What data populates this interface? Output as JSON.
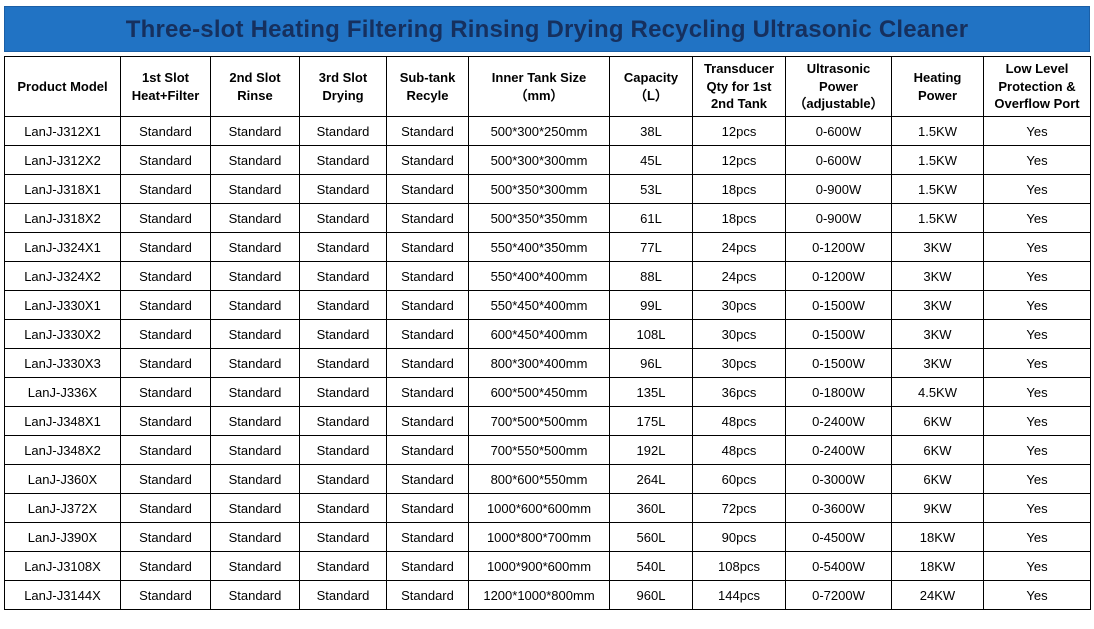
{
  "title": "Three-slot Heating Filtering Rinsing Drying Recycling Ultrasonic Cleaner",
  "colors": {
    "banner_bg": "#2173c4",
    "banner_text": "#16305e",
    "table_border": "#000000"
  },
  "table": {
    "header_keys": [
      "product-model",
      "slot1-heat-filter",
      "slot2-rinse",
      "slot3-drying",
      "subtank-recycle",
      "inner-tank-size",
      "capacity",
      "transducer-qty",
      "ultrasonic-power",
      "heating-power",
      "low-level-protection"
    ],
    "headers": [
      "Product Model",
      "1st Slot\nHeat+Filter",
      "2nd Slot\nRinse",
      "3rd Slot\nDrying",
      "Sub-tank\nRecyle",
      "Inner Tank Size\n（mm）",
      "Capacity\n（L）",
      "Transducer\nQty for 1st\n2nd Tank",
      "Ultrasonic\nPower\n（adjustable）",
      "Heating\nPower",
      "Low Level\nProtection &\nOverflow Port"
    ],
    "rows": [
      [
        "LanJ-J312X1",
        "Standard",
        "Standard",
        "Standard",
        "Standard",
        "500*300*250mm",
        "38L",
        "12pcs",
        "0-600W",
        "1.5KW",
        "Yes"
      ],
      [
        "LanJ-J312X2",
        "Standard",
        "Standard",
        "Standard",
        "Standard",
        "500*300*300mm",
        "45L",
        "12pcs",
        "0-600W",
        "1.5KW",
        "Yes"
      ],
      [
        "LanJ-J318X1",
        "Standard",
        "Standard",
        "Standard",
        "Standard",
        "500*350*300mm",
        "53L",
        "18pcs",
        "0-900W",
        "1.5KW",
        "Yes"
      ],
      [
        "LanJ-J318X2",
        "Standard",
        "Standard",
        "Standard",
        "Standard",
        "500*350*350mm",
        "61L",
        "18pcs",
        "0-900W",
        "1.5KW",
        "Yes"
      ],
      [
        "LanJ-J324X1",
        "Standard",
        "Standard",
        "Standard",
        "Standard",
        "550*400*350mm",
        "77L",
        "24pcs",
        "0-1200W",
        "3KW",
        "Yes"
      ],
      [
        "LanJ-J324X2",
        "Standard",
        "Standard",
        "Standard",
        "Standard",
        "550*400*400mm",
        "88L",
        "24pcs",
        "0-1200W",
        "3KW",
        "Yes"
      ],
      [
        "LanJ-J330X1",
        "Standard",
        "Standard",
        "Standard",
        "Standard",
        "550*450*400mm",
        "99L",
        "30pcs",
        "0-1500W",
        "3KW",
        "Yes"
      ],
      [
        "LanJ-J330X2",
        "Standard",
        "Standard",
        "Standard",
        "Standard",
        "600*450*400mm",
        "108L",
        "30pcs",
        "0-1500W",
        "3KW",
        "Yes"
      ],
      [
        "LanJ-J330X3",
        "Standard",
        "Standard",
        "Standard",
        "Standard",
        "800*300*400mm",
        "96L",
        "30pcs",
        "0-1500W",
        "3KW",
        "Yes"
      ],
      [
        "LanJ-J336X",
        "Standard",
        "Standard",
        "Standard",
        "Standard",
        "600*500*450mm",
        "135L",
        "36pcs",
        "0-1800W",
        "4.5KW",
        "Yes"
      ],
      [
        "LanJ-J348X1",
        "Standard",
        "Standard",
        "Standard",
        "Standard",
        "700*500*500mm",
        "175L",
        "48pcs",
        "0-2400W",
        "6KW",
        "Yes"
      ],
      [
        "LanJ-J348X2",
        "Standard",
        "Standard",
        "Standard",
        "Standard",
        "700*550*500mm",
        "192L",
        "48pcs",
        "0-2400W",
        "6KW",
        "Yes"
      ],
      [
        "LanJ-J360X",
        "Standard",
        "Standard",
        "Standard",
        "Standard",
        "800*600*550mm",
        "264L",
        "60pcs",
        "0-3000W",
        "6KW",
        "Yes"
      ],
      [
        "LanJ-J372X",
        "Standard",
        "Standard",
        "Standard",
        "Standard",
        "1000*600*600mm",
        "360L",
        "72pcs",
        "0-3600W",
        "9KW",
        "Yes"
      ],
      [
        "LanJ-J390X",
        "Standard",
        "Standard",
        "Standard",
        "Standard",
        "1000*800*700mm",
        "560L",
        "90pcs",
        "0-4500W",
        "18KW",
        "Yes"
      ],
      [
        "LanJ-J3108X",
        "Standard",
        "Standard",
        "Standard",
        "Standard",
        "1000*900*600mm",
        "540L",
        "108pcs",
        "0-5400W",
        "18KW",
        "Yes"
      ],
      [
        "LanJ-J3144X",
        "Standard",
        "Standard",
        "Standard",
        "Standard",
        "1200*1000*800mm",
        "960L",
        "144pcs",
        "0-7200W",
        "24KW",
        "Yes"
      ]
    ]
  }
}
